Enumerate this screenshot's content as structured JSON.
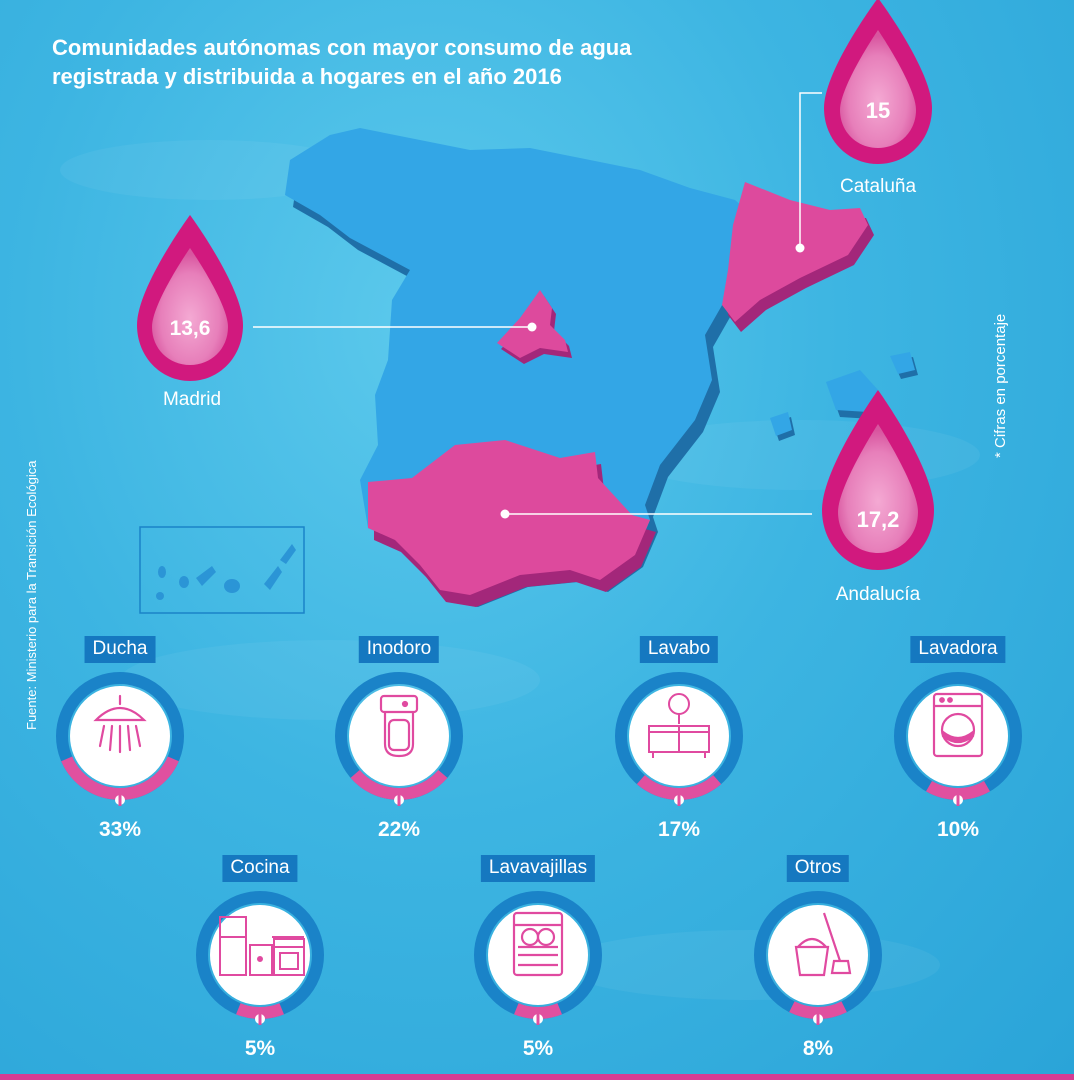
{
  "title_line1": "Comunidades autónomas con mayor consumo de agua",
  "title_line2": "registrada y distribuida a hogares en el año 2016",
  "side_note": "* Cifras en porcentaje",
  "source": "Fuente: Ministerio para la Transición Ecológica",
  "regions": {
    "cataluna": {
      "name": "Cataluña",
      "value": "15"
    },
    "madrid": {
      "name": "Madrid",
      "value": "13,6"
    },
    "andalucia": {
      "name": "Andalucía",
      "value": "17,2"
    }
  },
  "appliances": [
    {
      "label": "Ducha",
      "percent": "33%",
      "share": 33,
      "icon": "shower-icon"
    },
    {
      "label": "Inodoro",
      "percent": "22%",
      "share": 22,
      "icon": "toilet-icon"
    },
    {
      "label": "Lavabo",
      "percent": "17%",
      "share": 17,
      "icon": "sink-icon"
    },
    {
      "label": "Lavadora",
      "percent": "10%",
      "share": 10,
      "icon": "washing-machine-icon"
    },
    {
      "label": "Cocina",
      "percent": "5%",
      "share": 5,
      "icon": "kitchen-icon"
    },
    {
      "label": "Lavavajillas",
      "percent": "5%",
      "share": 5,
      "icon": "dishwasher-icon"
    },
    {
      "label": "Otros",
      "percent": "8%",
      "share": 8,
      "icon": "mop-bucket-icon"
    }
  ],
  "colors": {
    "map_fill": "#33a6e6",
    "highlight": "#dd4a9d",
    "drop_outer": "#d1197e",
    "ring_blue": "#1a83c8",
    "ring_pink": "#e0509f",
    "icon_pink": "#e04aa0"
  }
}
